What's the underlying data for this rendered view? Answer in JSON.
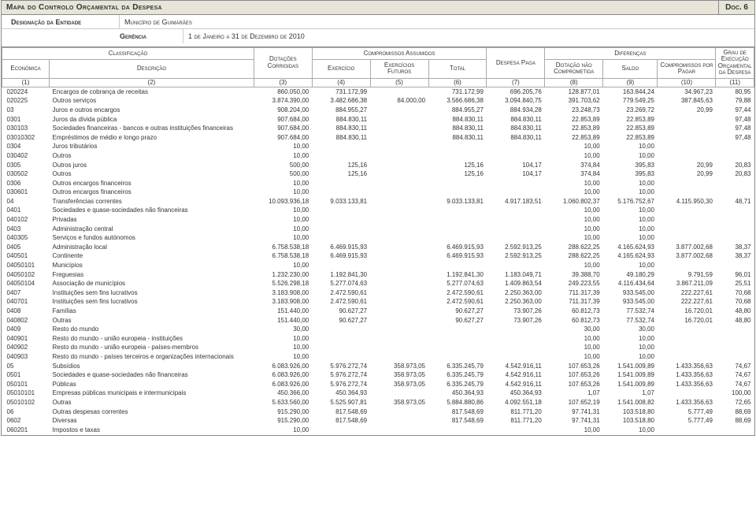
{
  "header": {
    "title": "Mapa do Controlo Orçamental da Despesa",
    "docnum": "Doc. 6",
    "entity_label": "Designação da Entidade",
    "entity_value": "Município de Guimarães",
    "period_label": "Gerência",
    "period_value": "1 de Janeiro a 31 de Dezembro de 2010"
  },
  "columns": {
    "group_class": "Classificação",
    "econ": "Económica",
    "desc": "Descrição",
    "dotacoes": "Dotações Corrigidas",
    "compromissos": "Compromissos Assumidos",
    "exercicio": "Exercício",
    "ex_futuros": "Exercícios Futuros",
    "total": "Total",
    "despesa_paga": "Despesa Paga",
    "diferencas": "Diferenças",
    "dot_nao": "Dotação não Comprometida",
    "saldo": "Saldo",
    "comp_pagar": "Compromissos por Pagar",
    "grau": "Grau de Execução Orçamental da Despesa",
    "nums": [
      "(1)",
      "(2)",
      "(3)",
      "(4)",
      "(5)",
      "(6)",
      "(7)",
      "(8)",
      "(9)",
      "(10)",
      "(11)"
    ]
  },
  "rows": [
    {
      "c": "020224",
      "d": "Encargos de cobrança de receitas",
      "v": [
        "860.050,00",
        "731.172,99",
        "",
        "731.172,99",
        "696.205,76",
        "128.877,01",
        "163.844,24",
        "34.967,23",
        "80,95"
      ]
    },
    {
      "c": "020225",
      "d": "Outros serviços",
      "v": [
        "3.874.390,00",
        "3.482.686,38",
        "84.000,00",
        "3.566.686,38",
        "3.094.840,75",
        "391.703,62",
        "779.549,25",
        "387.845,63",
        "79,88"
      ]
    },
    {
      "c": "03",
      "d": "Juros e outros encargos",
      "v": [
        "908.204,00",
        "884.955,27",
        "",
        "884.955,27",
        "884.934,28",
        "23.248,73",
        "23.269,72",
        "20,99",
        "97,44"
      ]
    },
    {
      "c": "0301",
      "d": "Juros da dívida pública",
      "v": [
        "907.684,00",
        "884.830,11",
        "",
        "884.830,11",
        "884.830,11",
        "22.853,89",
        "22.853,89",
        "",
        "97,48"
      ]
    },
    {
      "c": "030103",
      "d": "Sociedades financeiras - bancos e outras instituições financeiras",
      "v": [
        "907.684,00",
        "884.830,11",
        "",
        "884.830,11",
        "884.830,11",
        "22.853,89",
        "22.853,89",
        "",
        "97,48"
      ]
    },
    {
      "c": "03010302",
      "d": "Empréstimos de médio e longo prazo",
      "v": [
        "907.684,00",
        "884.830,11",
        "",
        "884.830,11",
        "884.830,11",
        "22.853,89",
        "22.853,89",
        "",
        "97,48"
      ]
    },
    {
      "c": "0304",
      "d": "Juros tributários",
      "v": [
        "10,00",
        "",
        "",
        "",
        "",
        "10,00",
        "10,00",
        "",
        ""
      ]
    },
    {
      "c": "030402",
      "d": "Outros",
      "v": [
        "10,00",
        "",
        "",
        "",
        "",
        "10,00",
        "10,00",
        "",
        ""
      ]
    },
    {
      "c": "0305",
      "d": "Outros juros",
      "v": [
        "500,00",
        "125,16",
        "",
        "125,16",
        "104,17",
        "374,84",
        "395,83",
        "20,99",
        "20,83"
      ]
    },
    {
      "c": "030502",
      "d": "Outros",
      "v": [
        "500,00",
        "125,16",
        "",
        "125,16",
        "104,17",
        "374,84",
        "395,83",
        "20,99",
        "20,83"
      ]
    },
    {
      "c": "0306",
      "d": "Outros encargos financeiros",
      "v": [
        "10,00",
        "",
        "",
        "",
        "",
        "10,00",
        "10,00",
        "",
        ""
      ]
    },
    {
      "c": "030601",
      "d": "Outros encargos financeiros",
      "v": [
        "10,00",
        "",
        "",
        "",
        "",
        "10,00",
        "10,00",
        "",
        ""
      ]
    },
    {
      "c": "04",
      "d": "Transferências correntes",
      "v": [
        "10.093.936,18",
        "9.033.133,81",
        "",
        "9.033.133,81",
        "4.917.183,51",
        "1.060.802,37",
        "5.176.752,67",
        "4.115.950,30",
        "48,71"
      ]
    },
    {
      "c": "0401",
      "d": "Sociedades e quase-sociedades não financeiras",
      "v": [
        "10,00",
        "",
        "",
        "",
        "",
        "10,00",
        "10,00",
        "",
        ""
      ]
    },
    {
      "c": "040102",
      "d": "Privadas",
      "v": [
        "10,00",
        "",
        "",
        "",
        "",
        "10,00",
        "10,00",
        "",
        ""
      ]
    },
    {
      "c": "0403",
      "d": "Administração central",
      "v": [
        "10,00",
        "",
        "",
        "",
        "",
        "10,00",
        "10,00",
        "",
        ""
      ]
    },
    {
      "c": "040305",
      "d": "Serviços e fundos autónomos",
      "v": [
        "10,00",
        "",
        "",
        "",
        "",
        "10,00",
        "10,00",
        "",
        ""
      ]
    },
    {
      "c": "0405",
      "d": "Administração local",
      "v": [
        "6.758.538,18",
        "6.469.915,93",
        "",
        "6.469.915,93",
        "2.592.913,25",
        "288.622,25",
        "4.165.624,93",
        "3.877.002,68",
        "38,37"
      ]
    },
    {
      "c": "040501",
      "d": "Continente",
      "v": [
        "6.758.538,18",
        "6.469.915,93",
        "",
        "6.469.915,93",
        "2.592.913,25",
        "288.622,25",
        "4.165.624,93",
        "3.877.002,68",
        "38,37"
      ]
    },
    {
      "c": "04050101",
      "d": "Municípios",
      "v": [
        "10,00",
        "",
        "",
        "",
        "",
        "10,00",
        "10,00",
        "",
        ""
      ]
    },
    {
      "c": "04050102",
      "d": "Freguesias",
      "v": [
        "1.232.230,00",
        "1.192.841,30",
        "",
        "1.192.841,30",
        "1.183.049,71",
        "39.388,70",
        "49.180,29",
        "9.791,59",
        "96,01"
      ]
    },
    {
      "c": "04050104",
      "d": "Associação de municípios",
      "v": [
        "5.526.298,18",
        "5.277.074,63",
        "",
        "5.277.074,63",
        "1.409.863,54",
        "249.223,55",
        "4.116.434,64",
        "3.867.211,09",
        "25,51"
      ]
    },
    {
      "c": "0407",
      "d": "Instituições sem fins lucrativos",
      "v": [
        "3.183.908,00",
        "2.472.590,61",
        "",
        "2.472.590,61",
        "2.250.363,00",
        "711.317,39",
        "933.545,00",
        "222.227,61",
        "70,68"
      ]
    },
    {
      "c": "040701",
      "d": "Instituições sem fins lucrativos",
      "v": [
        "3.183.908,00",
        "2.472.590,61",
        "",
        "2.472.590,61",
        "2.250.363,00",
        "711.317,39",
        "933.545,00",
        "222.227,61",
        "70,68"
      ]
    },
    {
      "c": "0408",
      "d": "Famílias",
      "v": [
        "151.440,00",
        "90.627,27",
        "",
        "90.627,27",
        "73.907,26",
        "60.812,73",
        "77.532,74",
        "16.720,01",
        "48,80"
      ]
    },
    {
      "c": "040802",
      "d": "Outras",
      "v": [
        "151.440,00",
        "90.627,27",
        "",
        "90.627,27",
        "73.907,26",
        "60.812,73",
        "77.532,74",
        "16.720,01",
        "48,80"
      ]
    },
    {
      "c": "0409",
      "d": "Resto do mundo",
      "v": [
        "30,00",
        "",
        "",
        "",
        "",
        "30,00",
        "30,00",
        "",
        ""
      ]
    },
    {
      "c": "040901",
      "d": "Resto do mundo - união europeia - instituições",
      "v": [
        "10,00",
        "",
        "",
        "",
        "",
        "10,00",
        "10,00",
        "",
        ""
      ]
    },
    {
      "c": "040902",
      "d": "Resto do mundo - união europeia - países-membros",
      "v": [
        "10,00",
        "",
        "",
        "",
        "",
        "10,00",
        "10,00",
        "",
        ""
      ]
    },
    {
      "c": "040903",
      "d": "Resto do mundo - países terceiros e organizações internacionais",
      "v": [
        "10,00",
        "",
        "",
        "",
        "",
        "10,00",
        "10,00",
        "",
        ""
      ]
    },
    {
      "c": "05",
      "d": "Subsídios",
      "v": [
        "6.083.926,00",
        "5.976.272,74",
        "358.973,05",
        "6.335.245,79",
        "4.542.916,11",
        "107.653,26",
        "1.541.009,89",
        "1.433.356,63",
        "74,67"
      ]
    },
    {
      "c": "0501",
      "d": "Sociedades e quase-sociedades não financeiras",
      "v": [
        "6.083.926,00",
        "5.976.272,74",
        "358.973,05",
        "6.335.245,79",
        "4.542.916,11",
        "107.653,26",
        "1.541.009,89",
        "1.433.356,63",
        "74,67"
      ]
    },
    {
      "c": "050101",
      "d": "Públicas",
      "v": [
        "6.083.926,00",
        "5.976.272,74",
        "358.973,05",
        "6.335.245,79",
        "4.542.916,11",
        "107.653,26",
        "1.541.009,89",
        "1.433.356,63",
        "74,67"
      ]
    },
    {
      "c": "05010101",
      "d": "Empresas públicas municipais e intermunicipais",
      "v": [
        "450.366,00",
        "450.364,93",
        "",
        "450.364,93",
        "450.364,93",
        "1,07",
        "1,07",
        "",
        "100,00"
      ]
    },
    {
      "c": "05010102",
      "d": "Outras",
      "v": [
        "5.633.560,00",
        "5.525.907,81",
        "358.973,05",
        "5.884.880,86",
        "4.092.551,18",
        "107.652,19",
        "1.541.008,82",
        "1.433.356,63",
        "72,65"
      ]
    },
    {
      "c": "06",
      "d": "Outras despesas correntes",
      "v": [
        "915.290,00",
        "817.548,69",
        "",
        "817.548,69",
        "811.771,20",
        "97.741,31",
        "103.518,80",
        "5.777,49",
        "88,69"
      ]
    },
    {
      "c": "0602",
      "d": "Diversas",
      "v": [
        "915.290,00",
        "817.548,69",
        "",
        "817.548,69",
        "811.771,20",
        "97.741,31",
        "103.518,80",
        "5.777,49",
        "88,69"
      ]
    },
    {
      "c": "060201",
      "d": "Impostos e taxas",
      "v": [
        "10,00",
        "",
        "",
        "",
        "",
        "10,00",
        "10,00",
        "",
        ""
      ]
    }
  ],
  "style": {
    "header_bg": "#e8e5d8",
    "border_color": "#888888",
    "font_size_body": 8,
    "font_size_header": 10
  }
}
